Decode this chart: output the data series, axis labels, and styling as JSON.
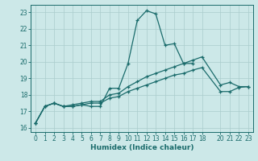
{
  "xlabel": "Humidex (Indice chaleur)",
  "bg_color": "#cce8e8",
  "grid_color": "#aacccc",
  "line_color": "#1a6b6b",
  "xlim": [
    -0.5,
    23.5
  ],
  "ylim": [
    15.75,
    23.45
  ],
  "yticks": [
    16,
    17,
    18,
    19,
    20,
    21,
    22,
    23
  ],
  "xticks": [
    0,
    1,
    2,
    3,
    4,
    5,
    6,
    7,
    8,
    9,
    10,
    11,
    12,
    13,
    14,
    15,
    16,
    17,
    18,
    20,
    21,
    22,
    23
  ],
  "line1_x": [
    0,
    1,
    2,
    3,
    4,
    5,
    6,
    7,
    8,
    9,
    10,
    11,
    12,
    13,
    14,
    15,
    16,
    17
  ],
  "line1_y": [
    16.3,
    17.3,
    17.5,
    17.3,
    17.3,
    17.4,
    17.3,
    17.3,
    18.4,
    18.4,
    19.9,
    22.5,
    23.1,
    22.9,
    21.0,
    21.1,
    19.9,
    19.9
  ],
  "line2_x": [
    0,
    1,
    2,
    3,
    4,
    5,
    6,
    7,
    8,
    9,
    10,
    11,
    12,
    13,
    14,
    15,
    16,
    17,
    18,
    20,
    21,
    22,
    23
  ],
  "line2_y": [
    16.3,
    17.3,
    17.5,
    17.3,
    17.4,
    17.5,
    17.6,
    17.6,
    18.0,
    18.1,
    18.5,
    18.8,
    19.1,
    19.3,
    19.5,
    19.7,
    19.9,
    20.1,
    20.3,
    18.6,
    18.75,
    18.5,
    18.5
  ],
  "line3_x": [
    0,
    1,
    2,
    3,
    4,
    5,
    6,
    7,
    8,
    9,
    10,
    11,
    12,
    13,
    14,
    15,
    16,
    17,
    18,
    20,
    21,
    22,
    23
  ],
  "line3_y": [
    16.3,
    17.3,
    17.5,
    17.3,
    17.3,
    17.4,
    17.5,
    17.5,
    17.8,
    17.9,
    18.2,
    18.4,
    18.6,
    18.8,
    19.0,
    19.2,
    19.3,
    19.5,
    19.65,
    18.2,
    18.2,
    18.45,
    18.5
  ]
}
